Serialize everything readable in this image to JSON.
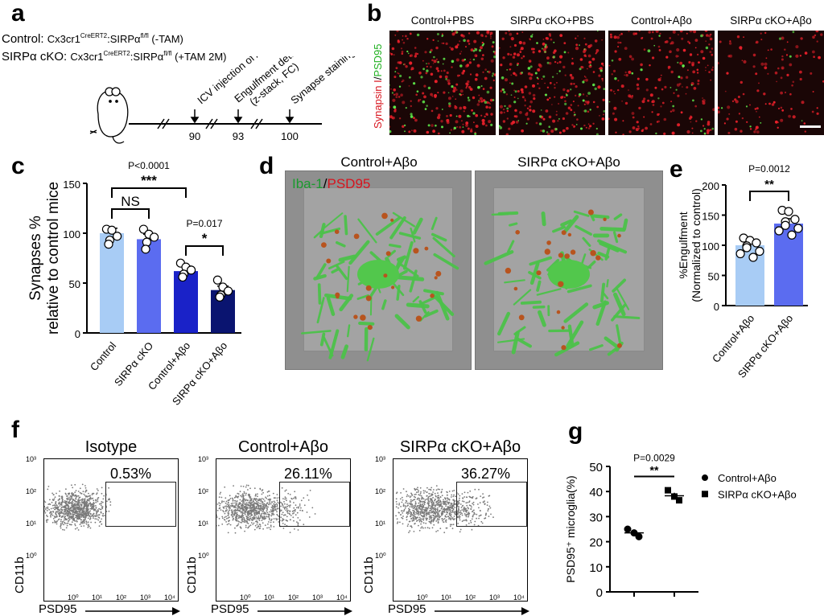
{
  "panels": {
    "a": {
      "letter": "a",
      "control_prefix": "Control: ",
      "control_genotype": "Cx3cr1",
      "control_sup": "CreERT2",
      "control_mid": ":SIRPα",
      "control_sup2": "fl/fl",
      "control_tam": " (-TAM)",
      "cko_prefix": "SIRPα cKO: ",
      "cko_genotype": "Cx3cr1",
      "cko_sup": "CreERT2",
      "cko_mid": ":SIRPα",
      "cko_sup2": "fl/fl",
      "cko_tam": " (+TAM 2M)",
      "events": [
        {
          "label": "ICV injection of Aβo",
          "day": "90"
        },
        {
          "label": "Engulfment detection\n(z-stack, FC)",
          "day": "93"
        },
        {
          "label": "Synapse staining",
          "day": "100"
        }
      ]
    },
    "b": {
      "letter": "b",
      "stain_label_red": "Synapsin I",
      "stain_label_sep": "/",
      "stain_label_green": "PSD95",
      "columns": [
        "Control+PBS",
        "SIRPα cKO+PBS",
        "Control+Aβo",
        "SIRPα cKO+Aβo"
      ]
    },
    "c": {
      "letter": "c"
    },
    "d": {
      "letter": "d",
      "labels": [
        "Control+Aβo",
        "SIRPα cKO+Aβo"
      ],
      "stain_green": "Iba-1",
      "stain_sep": "/",
      "stain_red": "PSD95"
    },
    "e": {
      "letter": "e"
    },
    "f": {
      "letter": "f",
      "plots": [
        {
          "title": "Isotype",
          "gate_pct": "0.53%"
        },
        {
          "title": "Control+Aβo",
          "gate_pct": "26.11%"
        },
        {
          "title": "SIRPα cKO+Aβo",
          "gate_pct": "36.27%"
        }
      ],
      "xlabel": "PSD95",
      "ylabel": "CD11b",
      "xticks": [
        "10⁰",
        "10¹",
        "10²",
        "10³",
        "10⁴"
      ],
      "yticks": [
        "10³",
        "10²",
        "10¹",
        "10⁰"
      ]
    },
    "g": {
      "letter": "g"
    }
  },
  "chart_data": [
    {
      "id": "c",
      "type": "bar",
      "ylabel": "Synapses %\nrelative to control mice",
      "categories": [
        "Control",
        "SIRPα cKO",
        "Control+Aβo",
        "SIRPα cKO+Aβo"
      ],
      "values": [
        100,
        94,
        62,
        43
      ],
      "errors": [
        5,
        5,
        5,
        4
      ],
      "points": [
        [
          104,
          103,
          97,
          93,
          89
        ],
        [
          104,
          99,
          96,
          91,
          84
        ],
        [
          70,
          66,
          63,
          59,
          56
        ],
        [
          53,
          46,
          42,
          38,
          36
        ]
      ],
      "colors": [
        "#a8ccf5",
        "#5b6cf0",
        "#1a22c8",
        "#0a1470"
      ],
      "ylim": [
        0,
        150
      ],
      "yticks": [
        0,
        50,
        100,
        150
      ],
      "annotations": [
        {
          "from": 0,
          "to": 2,
          "p_text": "P<0.0001",
          "stars": "***"
        },
        {
          "from": 0,
          "to": 1,
          "p_text": "",
          "stars": "NS"
        },
        {
          "from": 2,
          "to": 3,
          "p_text": "P=0.017",
          "stars": "*"
        }
      ]
    },
    {
      "id": "e",
      "type": "bar",
      "ylabel": "%Engulfment\n(Normalized to control)",
      "categories": [
        "Control+Aβo",
        "SIRPα cKO+Aβo"
      ],
      "values": [
        100,
        136
      ],
      "errors": [
        6,
        8
      ],
      "points": [
        [
          112,
          108,
          104,
          99,
          96,
          90,
          86,
          80
        ],
        [
          158,
          156,
          143,
          139,
          133,
          128,
          124,
          117
        ]
      ],
      "colors": [
        "#a8ccf5",
        "#5b6cf0"
      ],
      "ylim": [
        0,
        200
      ],
      "yticks": [
        0,
        50,
        100,
        150,
        200
      ],
      "annotations": [
        {
          "from": 0,
          "to": 1,
          "p_text": "P=0.0012",
          "stars": "**"
        }
      ]
    },
    {
      "id": "g",
      "type": "scatter",
      "ylabel": "PSD95⁺ microglia(%)",
      "series": [
        {
          "name": "Control+Aβo",
          "marker": "circle",
          "values": [
            25.0,
            23.5,
            22.0
          ],
          "mean": 23.5,
          "sem": 0.9
        },
        {
          "name": "SIRPα cKO+Aβo",
          "marker": "square",
          "values": [
            40.5,
            38.0,
            36.5
          ],
          "mean": 38.3,
          "sem": 1.2
        }
      ],
      "ylim": [
        0,
        50
      ],
      "yticks": [
        0,
        10,
        20,
        30,
        40,
        50
      ],
      "annotations": [
        {
          "from": 0,
          "to": 1,
          "p_text": "P=0.0029",
          "stars": "**"
        }
      ]
    }
  ]
}
